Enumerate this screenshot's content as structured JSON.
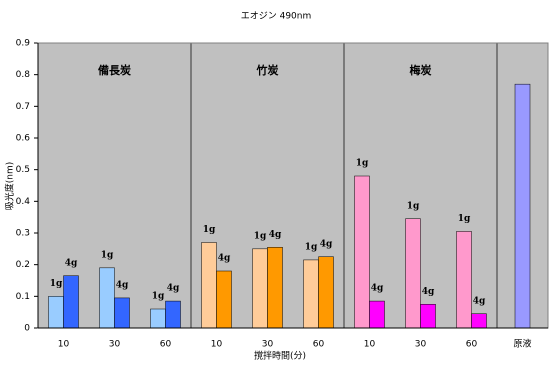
{
  "chart_data": {
    "type": "grouped-bar",
    "title": "エオジン 490nm",
    "x_label": "撹拌時間(分)",
    "y_label": "吸光度(nm)",
    "ylim": [
      0,
      0.9
    ],
    "yticks": [
      0,
      0.1,
      0.2,
      0.3,
      0.4,
      0.5,
      0.6,
      0.7,
      0.8,
      0.9
    ],
    "groups": [
      {
        "name": "備長炭",
        "categories": [
          "10",
          "30",
          "60"
        ],
        "series": [
          {
            "name": "1g",
            "color": "#99ccff",
            "values": [
              0.1,
              0.19,
              0.06
            ]
          },
          {
            "name": "4g",
            "color": "#3366ff",
            "values": [
              0.165,
              0.095,
              0.085
            ]
          }
        ]
      },
      {
        "name": "竹炭",
        "categories": [
          "10",
          "30",
          "60"
        ],
        "series": [
          {
            "name": "1g",
            "color": "#ffcc99",
            "values": [
              0.27,
              0.25,
              0.215
            ]
          },
          {
            "name": "4g",
            "color": "#ff9900",
            "values": [
              0.18,
              0.255,
              0.225
            ]
          }
        ]
      },
      {
        "name": "梅炭",
        "categories": [
          "10",
          "30",
          "60"
        ],
        "series": [
          {
            "name": "1g",
            "color": "#ff99cc",
            "values": [
              0.48,
              0.345,
              0.305
            ]
          },
          {
            "name": "4g",
            "color": "#ff00ff",
            "values": [
              0.085,
              0.075,
              0.045
            ]
          }
        ]
      },
      {
        "categories": [
          "原液"
        ],
        "series": [
          {
            "color": "#9999ff",
            "values": [
              0.77
            ]
          }
        ]
      }
    ]
  }
}
